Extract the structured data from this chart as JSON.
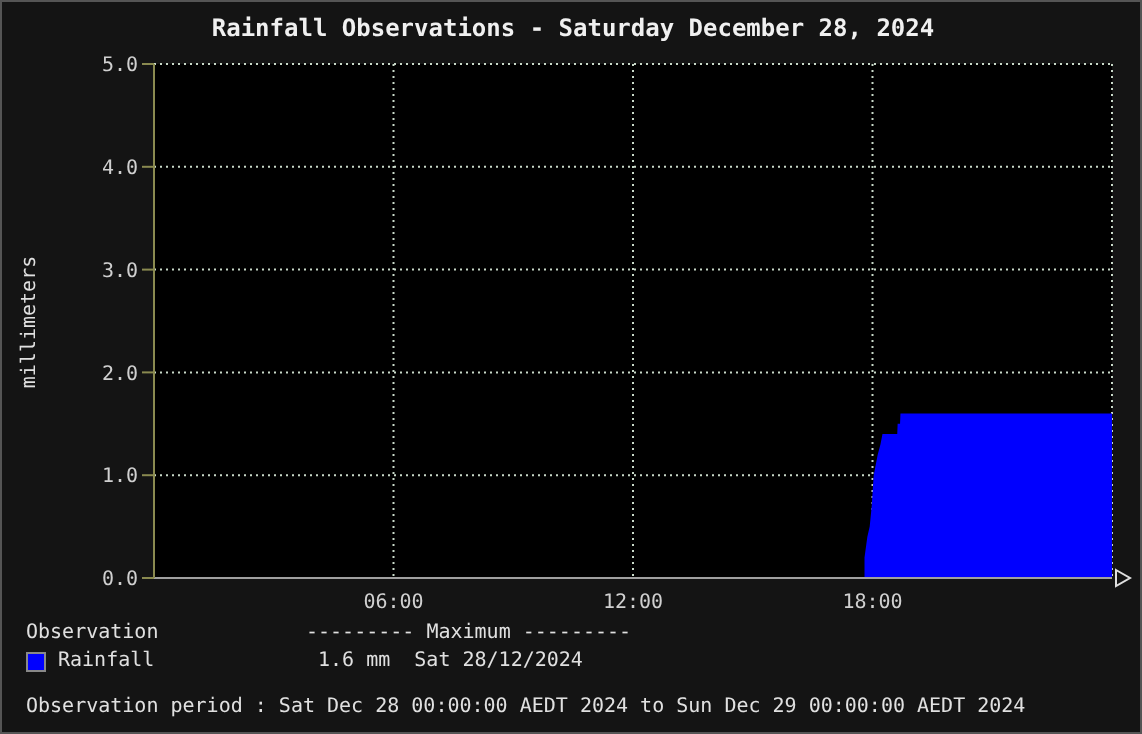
{
  "chart_data": {
    "type": "area",
    "title": "Rainfall Observations - Saturday December 28, 2024",
    "ylabel": "millimeters",
    "legend_title": "Observation",
    "legend": "bottom",
    "grid": true,
    "xlim": [
      0,
      24
    ],
    "xticks": [
      {
        "value": 6,
        "label": "06:00"
      },
      {
        "value": 12,
        "label": "12:00"
      },
      {
        "value": 18,
        "label": "18:00"
      }
    ],
    "ylim": [
      0,
      5
    ],
    "yticks": [
      {
        "value": 0,
        "label": "0.0"
      },
      {
        "value": 1,
        "label": "1.0"
      },
      {
        "value": 2,
        "label": "2.0"
      },
      {
        "value": 3,
        "label": "3.0"
      },
      {
        "value": 4,
        "label": "4.0"
      },
      {
        "value": 5,
        "label": "5.0"
      }
    ],
    "series": [
      {
        "name": "Rainfall",
        "color": "#0000ff",
        "x": [
          17.8,
          17.8,
          17.87,
          17.93,
          17.98,
          18.03,
          18.08,
          18.13,
          18.2,
          18.25,
          18.62,
          18.63,
          18.69,
          18.7,
          24
        ],
        "values": [
          0,
          0.2,
          0.4,
          0.5,
          0.7,
          1.0,
          1.1,
          1.2,
          1.3,
          1.4,
          1.4,
          1.5,
          1.5,
          1.6,
          1.6
        ]
      }
    ],
    "annotations": [
      "--------- Maximum ---------",
      "1.6 mm  Sat 28/12/2024",
      "Observation period : Sat Dec 28 00:00:00 AEDT 2024 to Sun Dec 29 00:00:00 AEDT 2024"
    ]
  }
}
